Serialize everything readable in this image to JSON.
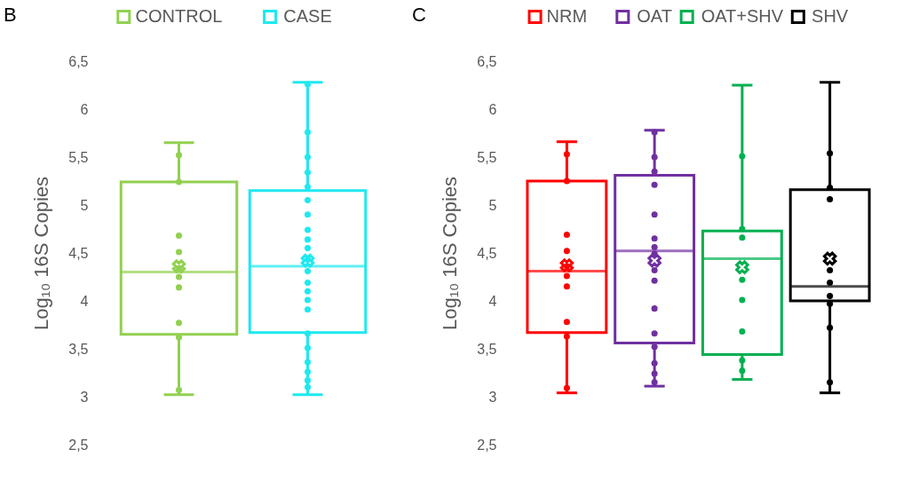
{
  "chart_data": [
    {
      "type": "box",
      "title": "B",
      "ylabel": "Log₁₀ 16S Copies",
      "categories": [
        "CONTROL",
        "CASE"
      ],
      "ylim": [
        2.5,
        6.5
      ],
      "yticks": [
        {
          "value": 2.5,
          "label": "2,5"
        },
        3,
        {
          "value": 3.5,
          "label": "3,5"
        },
        4,
        {
          "value": 4.5,
          "label": "4,5"
        },
        5,
        {
          "value": 5.5,
          "label": "5,5"
        },
        6,
        {
          "value": 6.5,
          "label": "6,5"
        }
      ],
      "tick_labels": "y",
      "legend": "top",
      "marker": "circle",
      "series": [
        {
          "type": "box",
          "name": "CONTROL",
          "color": "#92d050",
          "boxes": [
            {
              "low": 3.02,
              "q1": 3.65,
              "median": 4.3,
              "q3": 5.24,
              "high": 5.65,
              "mean": 4.36
            },
            null
          ]
        },
        {
          "type": "box",
          "name": "CASE",
          "color": "#1de9f0",
          "boxes": [
            null,
            {
              "low": 3.02,
              "q1": 3.67,
              "median": 4.36,
              "q3": 5.15,
              "high": 6.28,
              "mean": 4.42
            }
          ]
        },
        {
          "type": "scatter",
          "color": "#92d050",
          "x": [
            "CONTROL",
            "CONTROL",
            "CONTROL",
            "CONTROL",
            "CONTROL",
            "CONTROL",
            "CONTROL",
            "CONTROL",
            "CONTROL",
            "CONTROL"
          ],
          "values": [
            5.52,
            5.24,
            4.68,
            4.51,
            4.34,
            4.25,
            4.14,
            3.77,
            3.62,
            3.07
          ]
        },
        {
          "type": "scatter",
          "color": "#1de9f0",
          "x": [
            "CASE",
            "CASE",
            "CASE",
            "CASE",
            "CASE",
            "CASE",
            "CASE",
            "CASE",
            "CASE",
            "CASE",
            "CASE",
            "CASE",
            "CASE",
            "CASE",
            "CASE",
            "CASE",
            "CASE",
            "CASE",
            "CASE",
            "CASE",
            "CASE",
            "CASE"
          ],
          "values": [
            6.26,
            5.76,
            5.5,
            5.34,
            5.19,
            5.05,
            4.9,
            4.74,
            4.64,
            4.55,
            4.43,
            4.31,
            4.19,
            4.1,
            4.01,
            3.91,
            3.66,
            3.51,
            3.36,
            3.26,
            3.17,
            3.1
          ]
        }
      ]
    },
    {
      "type": "box",
      "title": "C",
      "ylabel": "Log₁₀ 16S Copies",
      "categories": [
        "NRM",
        "OAT",
        "OAT+SHV",
        "SHV"
      ],
      "ylim": [
        2.5,
        6.5
      ],
      "yticks": [
        {
          "value": 2.5,
          "label": "2,5"
        },
        3,
        {
          "value": 3.5,
          "label": "3,5"
        },
        4,
        {
          "value": 4.5,
          "label": "4,5"
        },
        5,
        {
          "value": 5.5,
          "label": "5,5"
        },
        6,
        {
          "value": 6.5,
          "label": "6,5"
        }
      ],
      "tick_labels": "y",
      "legend": "top",
      "marker": "circle",
      "series": [
        {
          "type": "box",
          "name": "NRM",
          "color": "#ff0000",
          "boxes": [
            {
              "low": 3.04,
              "q1": 3.67,
              "median": 4.31,
              "q3": 5.25,
              "high": 5.66,
              "mean": 4.37
            },
            null,
            null,
            null
          ]
        },
        {
          "type": "box",
          "name": "OAT",
          "color": "#7030a0",
          "boxes": [
            null,
            {
              "low": 3.11,
              "q1": 3.56,
              "median": 4.52,
              "q3": 5.31,
              "high": 5.78,
              "mean": 4.42
            },
            null,
            null
          ]
        },
        {
          "type": "box",
          "name": "OAT+SHV",
          "color": "#00b050",
          "boxes": [
            null,
            null,
            {
              "low": 3.18,
              "q1": 3.44,
              "median": 4.44,
              "q3": 4.73,
              "high": 6.25,
              "mean": 4.35
            },
            null
          ]
        },
        {
          "type": "box",
          "name": "SHV",
          "color": "#000000",
          "boxes": [
            null,
            null,
            null,
            {
              "low": 3.04,
              "q1": 4.0,
              "median": 4.15,
              "q3": 5.16,
              "high": 6.28,
              "mean": 4.44
            }
          ]
        },
        {
          "type": "scatter",
          "color": "#ff0000",
          "x": [
            "NRM",
            "NRM",
            "NRM",
            "NRM",
            "NRM",
            "NRM",
            "NRM",
            "NRM",
            "NRM",
            "NRM"
          ],
          "values": [
            5.53,
            5.25,
            4.69,
            4.52,
            4.36,
            4.26,
            4.15,
            3.78,
            3.63,
            3.09
          ]
        },
        {
          "type": "scatter",
          "color": "#7030a0",
          "x": [
            "OAT",
            "OAT",
            "OAT",
            "OAT",
            "OAT",
            "OAT",
            "OAT",
            "OAT",
            "OAT",
            "OAT",
            "OAT",
            "OAT",
            "OAT",
            "OAT",
            "OAT",
            "OAT"
          ],
          "values": [
            5.76,
            5.5,
            5.35,
            5.21,
            4.9,
            4.65,
            4.56,
            4.49,
            4.32,
            4.21,
            3.92,
            3.66,
            3.52,
            3.35,
            3.24,
            3.15
          ]
        },
        {
          "type": "scatter",
          "color": "#00b050",
          "x": [
            "OAT+SHV",
            "OAT+SHV",
            "OAT+SHV",
            "OAT+SHV",
            "OAT+SHV",
            "OAT+SHV",
            "OAT+SHV",
            "OAT+SHV"
          ],
          "values": [
            5.51,
            4.75,
            4.66,
            4.22,
            4.01,
            3.68,
            3.38,
            3.27
          ]
        },
        {
          "type": "scatter",
          "color": "#000000",
          "x": [
            "SHV",
            "SHV",
            "SHV",
            "SHV",
            "SHV",
            "SHV",
            "SHV",
            "SHV",
            "SHV"
          ],
          "values": [
            5.54,
            5.18,
            5.06,
            4.32,
            4.19,
            4.05,
            3.97,
            3.72,
            3.15
          ]
        }
      ]
    }
  ]
}
